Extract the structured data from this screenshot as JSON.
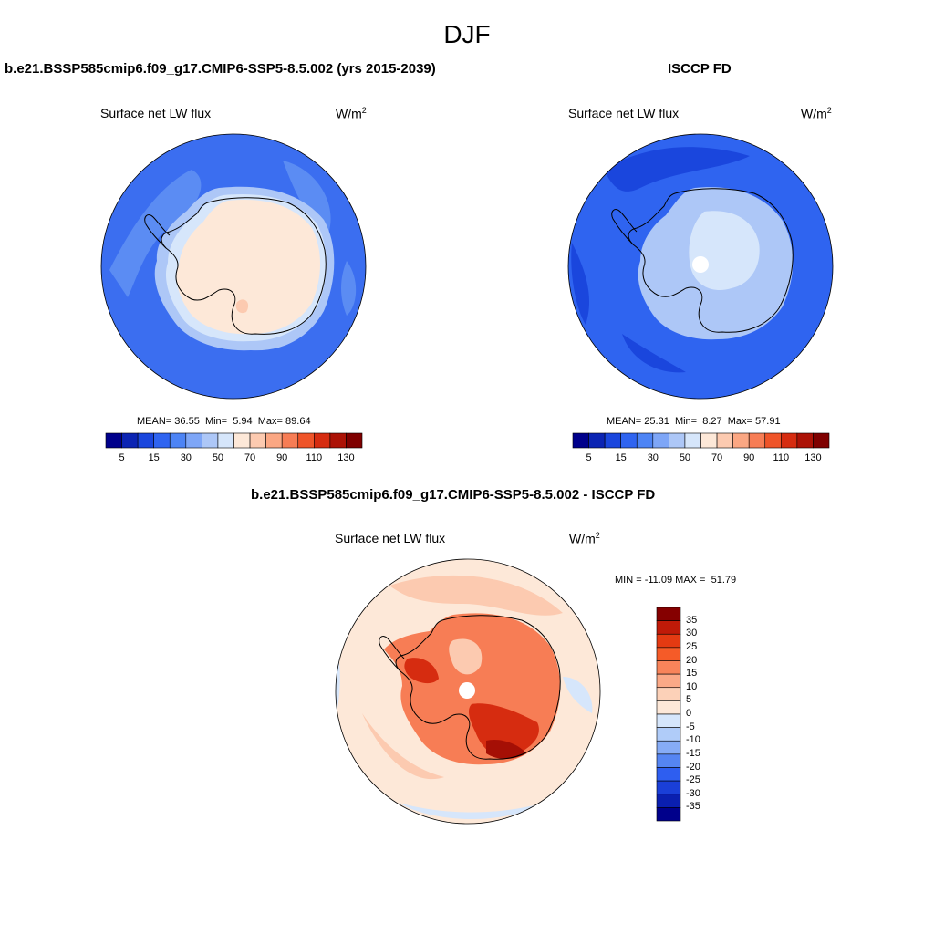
{
  "figure": {
    "season_title": "DJF",
    "panels": [
      {
        "id": "model",
        "title": "b.e21.BSSP585cmip6.f09_g17.CMIP6-SSP5-8.5.002 (yrs 2015-2039)",
        "variable": "Surface net LW flux",
        "units_base": "W/m",
        "units_exp": "2",
        "stats": {
          "mean_label": "MEAN=",
          "mean": "36.55",
          "min_label": "Min=",
          "min": "5.94",
          "max_label": "Max=",
          "max": "89.64"
        },
        "colorbar": {
          "orientation": "horizontal",
          "colors": [
            "#00008b",
            "#0b24b3",
            "#1a46dd",
            "#2f64f0",
            "#4d84f5",
            "#7ea6f7",
            "#adc7f7",
            "#d6e6fb",
            "#fde8d8",
            "#fccab0",
            "#fba783",
            "#f77d55",
            "#ef5429",
            "#d62c10",
            "#ac1206",
            "#7f0000"
          ],
          "tick_labels": [
            "5",
            "15",
            "30",
            "50",
            "70",
            "90",
            "110",
            "130"
          ]
        }
      },
      {
        "id": "obs",
        "title": "ISCCP FD",
        "variable": "Surface net LW flux",
        "units_base": "W/m",
        "units_exp": "2",
        "stats": {
          "mean_label": "MEAN=",
          "mean": "25.31",
          "min_label": "Min=",
          "min": "8.27",
          "max_label": "Max=",
          "max": "57.91"
        },
        "colorbar": {
          "orientation": "horizontal",
          "colors": [
            "#00008b",
            "#0b24b3",
            "#1a46dd",
            "#2f64f0",
            "#4d84f5",
            "#7ea6f7",
            "#adc7f7",
            "#d6e6fb",
            "#fde8d8",
            "#fccab0",
            "#fba783",
            "#f77d55",
            "#ef5429",
            "#d62c10",
            "#ac1206",
            "#7f0000"
          ],
          "tick_labels": [
            "5",
            "15",
            "30",
            "50",
            "70",
            "90",
            "110",
            "130"
          ]
        }
      },
      {
        "id": "diff",
        "title": "b.e21.BSSP585cmip6.f09_g17.CMIP6-SSP5-8.5.002 - ISCCP FD",
        "variable": "Surface net LW flux",
        "units_base": "W/m",
        "units_exp": "2",
        "stats": {
          "min_label": "MIN =",
          "min": "-11.09",
          "max_label": "MAX =",
          "max": "51.79"
        },
        "colorbar": {
          "orientation": "vertical",
          "colors": [
            "#850000",
            "#c01a08",
            "#e43a12",
            "#f55b28",
            "#f8845a",
            "#fba987",
            "#fcd1b8",
            "#fde8d8",
            "#d6e6fb",
            "#b0ccf9",
            "#86acf6",
            "#5585f2",
            "#2e5ef0",
            "#1a3fd8",
            "#0a1fb0",
            "#00008b"
          ],
          "tick_labels": [
            "35",
            "30",
            "25",
            "20",
            "15",
            "10",
            "5",
            "0",
            "-5",
            "-10",
            "-15",
            "-20",
            "-25",
            "-30",
            "-35"
          ]
        }
      }
    ]
  },
  "map_colors": {
    "ocean_model": "#3b6ef0",
    "ocean_model_light": "#5b8cf3",
    "coast_band": "#adc7f7",
    "coast_band2": "#d6e6fb",
    "land_model": "#fde8d8",
    "land_model_warm": "#fccab0",
    "ocean_obs": "#2f64f0",
    "ocean_obs_dark": "#1a46dd",
    "land_obs": "#adc7f7",
    "land_obs_light": "#d6e6fb",
    "diff_ocean": "#fde8d8",
    "diff_ocean_warm": "#fccab0",
    "diff_ocean_cool": "#d6e6fb",
    "diff_land": "#f77d55",
    "diff_land_hot": "#d62c10",
    "diff_land_max": "#a50f05",
    "coastline": "#000000"
  }
}
